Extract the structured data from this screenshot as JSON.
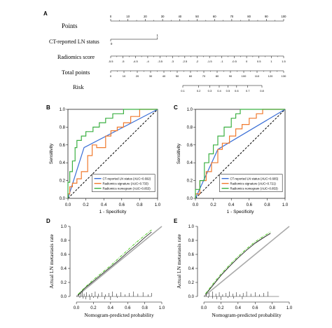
{
  "panels": {
    "a": "A",
    "b": "B",
    "c": "C",
    "d": "D",
    "e": "E"
  },
  "nomogram": {
    "rows": [
      {
        "label": "Points",
        "ticks": [
          "0",
          "10",
          "20",
          "30",
          "40",
          "50",
          "60",
          "70",
          "80",
          "90",
          "100"
        ],
        "minor_per_interval": 1
      },
      {
        "label": "CT-reported LN status",
        "ticks": [
          "0",
          "1"
        ],
        "range_pts": [
          0,
          27
        ]
      },
      {
        "label": "Radiomics score",
        "ticks": [
          "-5.5",
          "-5",
          "-4.5",
          "-4",
          "-3.5",
          "-3",
          "-2.5",
          "-2",
          "-1.5",
          "-1",
          "-0.5",
          "0",
          "0.5",
          "1",
          "1.5"
        ]
      },
      {
        "label": "Total points",
        "ticks": [
          "0",
          "10",
          "20",
          "30",
          "40",
          "50",
          "60",
          "70",
          "80",
          "90",
          "100",
          "110",
          "120",
          "130"
        ]
      },
      {
        "label": "Risk",
        "ticks": [
          "0.1",
          "0.2",
          "0.3",
          "0.4",
          "0.5",
          "0.6",
          "0.7",
          "0.8"
        ]
      }
    ]
  },
  "roc_panels": [
    {
      "xlabel": "1 - Specificity",
      "ylabel": "Sensitivity",
      "x_ticks": [
        "0.0",
        "0.2",
        "0.4",
        "0.6",
        "0.8",
        "1.0"
      ],
      "y_ticks": [
        "0.0",
        "0.2",
        "0.4",
        "0.6",
        "0.8",
        "1.0"
      ],
      "legend": [
        "CT-reported LN status (AUC=0.692)",
        "Radiomics signature (AUC=0.733)",
        "Radiomics nomogram (AUC=0.853)"
      ]
    },
    {
      "xlabel": "1 - Specificity",
      "ylabel": "Sensitivity",
      "x_ticks": [
        "0.0",
        "0.2",
        "0.4",
        "0.6",
        "0.8",
        "1.0"
      ],
      "y_ticks": [
        "0.0",
        "0.2",
        "0.4",
        "0.6",
        "0.8",
        "1.0"
      ],
      "legend": [
        "CT-reported LN status (AUC=0.665)",
        "Radiomics signature (AUC=0.721)",
        "Radiomics nomogram (AUC=0.853)"
      ]
    }
  ],
  "calib_panels": [
    {
      "xlabel": "Nomogram-predicted probability",
      "ylabel": "Actual LN metastasis rate",
      "x_ticks": [
        "0.0",
        "0.2",
        "0.4",
        "0.6",
        "0.8",
        "1.0"
      ],
      "y_ticks": [
        "0.0",
        "0.2",
        "0.4",
        "0.6",
        "0.8",
        "1.0"
      ]
    },
    {
      "xlabel": "Nomogram-predicted probability",
      "ylabel": "Actual LN metastasis rate",
      "x_ticks": [
        "0.0",
        "0.2",
        "0.4",
        "0.6",
        "0.8",
        "1.0"
      ],
      "y_ticks": [
        "0.0",
        "0.2",
        "0.4",
        "0.6",
        "0.8",
        "1.0"
      ]
    }
  ],
  "colors": {
    "ct": "#3b6fd6",
    "signature": "#f07a2e",
    "nomogram": "#3cb043",
    "ideal": "#aaaaaa",
    "apparent": "#5fcf3a",
    "diagonal": "#000000"
  },
  "chart_data": [
    {
      "type": "line",
      "panel": "B",
      "xlabel": "1 - Specificity",
      "ylabel": "Sensitivity",
      "xlim": [
        0,
        1
      ],
      "ylim": [
        0,
        1
      ],
      "series": [
        {
          "name": "CT-reported LN status (AUC=0.692)",
          "x": [
            0,
            0.18,
            1
          ],
          "y": [
            0,
            0.57,
            1
          ]
        },
        {
          "name": "Radiomics signature (AUC=0.733)",
          "x": [
            0,
            0,
            0.02,
            0.02,
            0.05,
            0.05,
            0.1,
            0.1,
            0.15,
            0.15,
            0.22,
            0.22,
            0.27,
            0.27,
            0.32,
            0.32,
            0.42,
            0.42,
            0.48,
            0.48,
            0.55,
            0.55,
            0.62,
            0.62,
            0.7,
            0.7,
            0.8,
            0.8,
            1.0
          ],
          "y": [
            0,
            0.05,
            0.05,
            0.13,
            0.13,
            0.17,
            0.17,
            0.22,
            0.22,
            0.3,
            0.3,
            0.48,
            0.48,
            0.6,
            0.6,
            0.57,
            0.57,
            0.7,
            0.7,
            0.76,
            0.76,
            0.8,
            0.8,
            0.85,
            0.85,
            0.92,
            0.92,
            1.0,
            1.0
          ]
        },
        {
          "name": "Radiomics nomogram (AUC=0.853)",
          "x": [
            0,
            0,
            0.02,
            0.02,
            0.05,
            0.05,
            0.08,
            0.08,
            0.1,
            0.1,
            0.15,
            0.15,
            0.2,
            0.2,
            0.28,
            0.28,
            0.35,
            0.35,
            0.42,
            0.42,
            0.5,
            0.5,
            0.62,
            0.62,
            1.0
          ],
          "y": [
            0,
            0.18,
            0.18,
            0.3,
            0.3,
            0.42,
            0.42,
            0.57,
            0.57,
            0.65,
            0.65,
            0.7,
            0.7,
            0.75,
            0.75,
            0.8,
            0.8,
            0.85,
            0.85,
            0.9,
            0.9,
            0.95,
            0.95,
            1.0,
            1.0
          ]
        }
      ]
    },
    {
      "type": "line",
      "panel": "C",
      "xlabel": "1 - Specificity",
      "ylabel": "Sensitivity",
      "xlim": [
        0,
        1
      ],
      "ylim": [
        0,
        1
      ],
      "series": [
        {
          "name": "CT-reported LN status (AUC=0.665)",
          "x": [
            0,
            0.25,
            1
          ],
          "y": [
            0,
            0.55,
            1
          ]
        },
        {
          "name": "Radiomics signature (AUC=0.721)",
          "x": [
            0,
            0,
            0.05,
            0.05,
            0.12,
            0.12,
            0.18,
            0.18,
            0.25,
            0.25,
            0.3,
            0.3,
            0.38,
            0.38,
            0.45,
            0.45,
            0.52,
            0.52,
            0.6,
            0.6,
            0.68,
            0.68,
            0.75,
            0.75,
            1.0
          ],
          "y": [
            0,
            0.05,
            0.05,
            0.2,
            0.2,
            0.3,
            0.3,
            0.4,
            0.4,
            0.55,
            0.55,
            0.62,
            0.62,
            0.7,
            0.7,
            0.78,
            0.78,
            0.83,
            0.83,
            0.9,
            0.9,
            0.95,
            0.95,
            1.0,
            1.0
          ]
        },
        {
          "name": "Radiomics nomogram (AUC=0.853)",
          "x": [
            0,
            0,
            0.05,
            0.05,
            0.1,
            0.1,
            0.15,
            0.15,
            0.2,
            0.2,
            0.25,
            0.25,
            0.32,
            0.32,
            0.4,
            0.4,
            0.45,
            0.45,
            0.5,
            0.5,
            1.0
          ],
          "y": [
            0,
            0.1,
            0.1,
            0.2,
            0.2,
            0.4,
            0.4,
            0.5,
            0.5,
            0.6,
            0.6,
            0.7,
            0.7,
            0.8,
            0.8,
            0.9,
            0.9,
            0.95,
            0.95,
            1.0,
            1.0
          ]
        }
      ]
    },
    {
      "type": "line",
      "panel": "D",
      "xlabel": "Nomogram-predicted probability",
      "ylabel": "Actual LN metastasis rate",
      "xlim": [
        -0.05,
        1.0
      ],
      "ylim": [
        -0.05,
        1.0
      ],
      "series": [
        {
          "x": [
            0,
            1
          ],
          "y": [
            0,
            1
          ]
        },
        {
          "x": [
            0.02,
            0.1,
            0.2,
            0.3,
            0.4,
            0.5,
            0.6,
            0.7,
            0.8,
            0.88
          ],
          "y": [
            0.02,
            0.12,
            0.22,
            0.32,
            0.42,
            0.52,
            0.63,
            0.73,
            0.84,
            0.92
          ]
        },
        {
          "x": [
            0.02,
            0.1,
            0.2,
            0.3,
            0.4,
            0.5,
            0.6,
            0.7,
            0.8,
            0.88
          ],
          "y": [
            0.03,
            0.13,
            0.24,
            0.34,
            0.44,
            0.55,
            0.66,
            0.77,
            0.87,
            0.95
          ]
        }
      ],
      "rug_top": [
        0.03,
        0.05,
        0.07,
        0.09,
        0.12,
        0.15,
        0.18,
        0.22,
        0.26,
        0.3,
        0.34,
        0.38,
        0.42,
        0.47,
        0.52,
        0.57,
        0.62,
        0.67,
        0.72,
        0.78,
        0.84,
        0.88
      ],
      "rug_bottom": [
        0.04,
        0.08,
        0.11,
        0.16,
        0.2,
        0.25,
        0.33,
        0.4,
        0.48
      ]
    },
    {
      "type": "line",
      "panel": "E",
      "xlabel": "Nomogram-predicted probability",
      "ylabel": "Actual LN metastasis rate",
      "xlim": [
        -0.05,
        1.0
      ],
      "ylim": [
        -0.05,
        1.0
      ],
      "series": [
        {
          "x": [
            0,
            1
          ],
          "y": [
            0,
            1
          ]
        },
        {
          "x": [
            0.02,
            0.1,
            0.2,
            0.3,
            0.4,
            0.5,
            0.6,
            0.7,
            0.78
          ],
          "y": [
            0.03,
            0.15,
            0.3,
            0.43,
            0.55,
            0.66,
            0.76,
            0.84,
            0.9
          ]
        },
        {
          "x": [
            0.02,
            0.1,
            0.2,
            0.3,
            0.4,
            0.5,
            0.6,
            0.7,
            0.78
          ],
          "y": [
            0.04,
            0.17,
            0.32,
            0.45,
            0.57,
            0.68,
            0.78,
            0.86,
            0.92
          ]
        }
      ],
      "rug_top": [
        0.03,
        0.06,
        0.1,
        0.14,
        0.18,
        0.22,
        0.26,
        0.3,
        0.34,
        0.38,
        0.42,
        0.46,
        0.5,
        0.55,
        0.6,
        0.65,
        0.7,
        0.75
      ],
      "rug_bottom": [
        0.05,
        0.1,
        0.15,
        0.2,
        0.28,
        0.35,
        0.45
      ]
    }
  ]
}
